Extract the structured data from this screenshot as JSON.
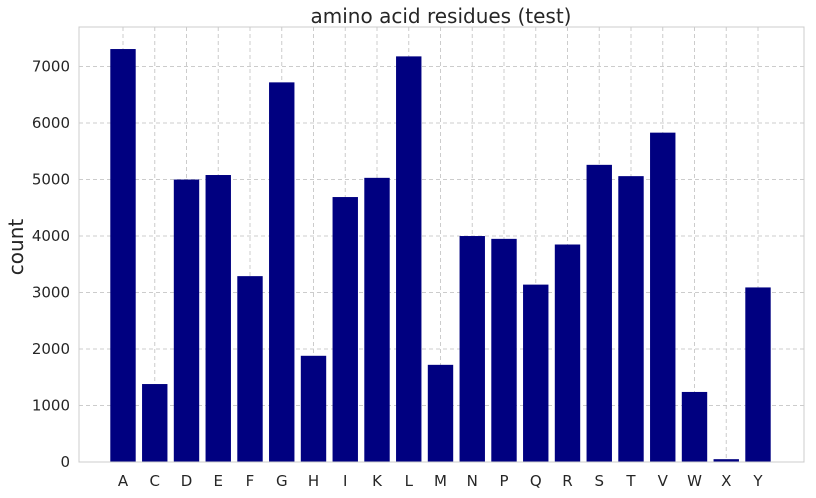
{
  "chart_data": {
    "type": "bar",
    "title": "amino acid residues (test)",
    "xlabel": "",
    "ylabel": "count",
    "categories": [
      "A",
      "C",
      "D",
      "E",
      "F",
      "G",
      "H",
      "I",
      "K",
      "L",
      "M",
      "N",
      "P",
      "Q",
      "R",
      "S",
      "T",
      "V",
      "W",
      "X",
      "Y"
    ],
    "values": [
      7310,
      1380,
      5000,
      5080,
      3290,
      6720,
      1880,
      4690,
      5030,
      7180,
      1720,
      4000,
      3950,
      3140,
      3850,
      5260,
      5060,
      5830,
      1240,
      50,
      3090
    ],
    "ylim": [
      0,
      7700
    ],
    "yticks": [
      0,
      1000,
      2000,
      3000,
      4000,
      5000,
      6000,
      7000
    ],
    "ytick_labels": [
      "0",
      "1000",
      "2000",
      "3000",
      "4000",
      "5000",
      "6000",
      "7000"
    ],
    "grid": true,
    "bar_color": "#000080",
    "grid_color": "#cccccc",
    "frame_color": "#cccccc"
  }
}
